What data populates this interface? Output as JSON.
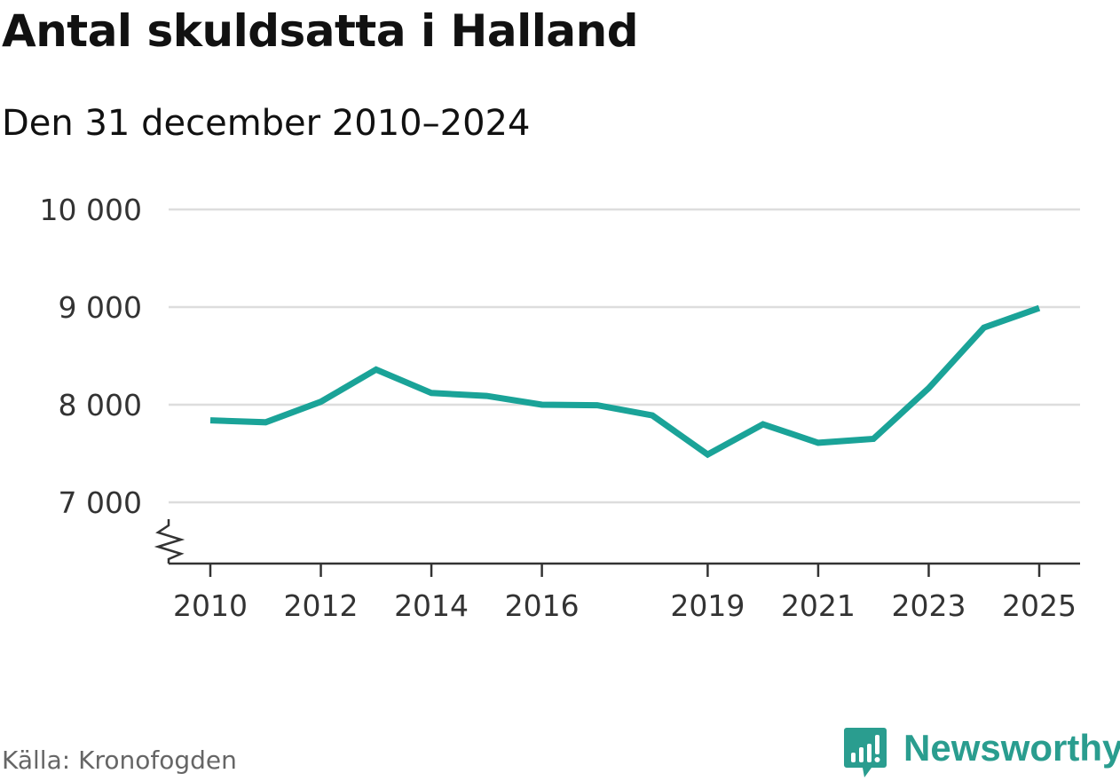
{
  "title": "Antal skuldsatta i Halland",
  "subtitle": "Den 31 december 2010–2024",
  "source": "Källa: Kronofogden",
  "brand": "Newsworthy",
  "colors": {
    "line": "#1aa398",
    "grid": "#dddddd",
    "axis": "#333333",
    "brand": "#2a9d8f",
    "tick_text": "#333333"
  },
  "chart_data": {
    "type": "line",
    "title": "Antal skuldsatta i Halland",
    "subtitle": "Den 31 december 2010–2024",
    "xlabel": "",
    "ylabel": "",
    "x": [
      2010,
      2011,
      2012,
      2013,
      2014,
      2015,
      2016,
      2017,
      2018,
      2019,
      2020,
      2021,
      2022,
      2023,
      2024,
      2025
    ],
    "series": [
      {
        "name": "Antal skuldsatta",
        "values": [
          7840,
          7820,
          8030,
          8360,
          8120,
          8090,
          8000,
          7995,
          7890,
          7490,
          7800,
          7610,
          7650,
          8170,
          8790,
          8990
        ]
      }
    ],
    "xlim": [
      2010,
      2025
    ],
    "ylim": [
      6400,
      10000
    ],
    "yticks": [
      7000,
      8000,
      9000,
      10000
    ],
    "ytick_labels": [
      "7 000",
      "8 000",
      "9 000",
      "10 000"
    ],
    "xticks": [
      2010,
      2012,
      2014,
      2016,
      2019,
      2021,
      2023,
      2025
    ],
    "xtick_labels": [
      "2010",
      "2012",
      "2014",
      "2016",
      "2019",
      "2021",
      "2023",
      "2025"
    ],
    "grid": true,
    "axis_break": true
  }
}
